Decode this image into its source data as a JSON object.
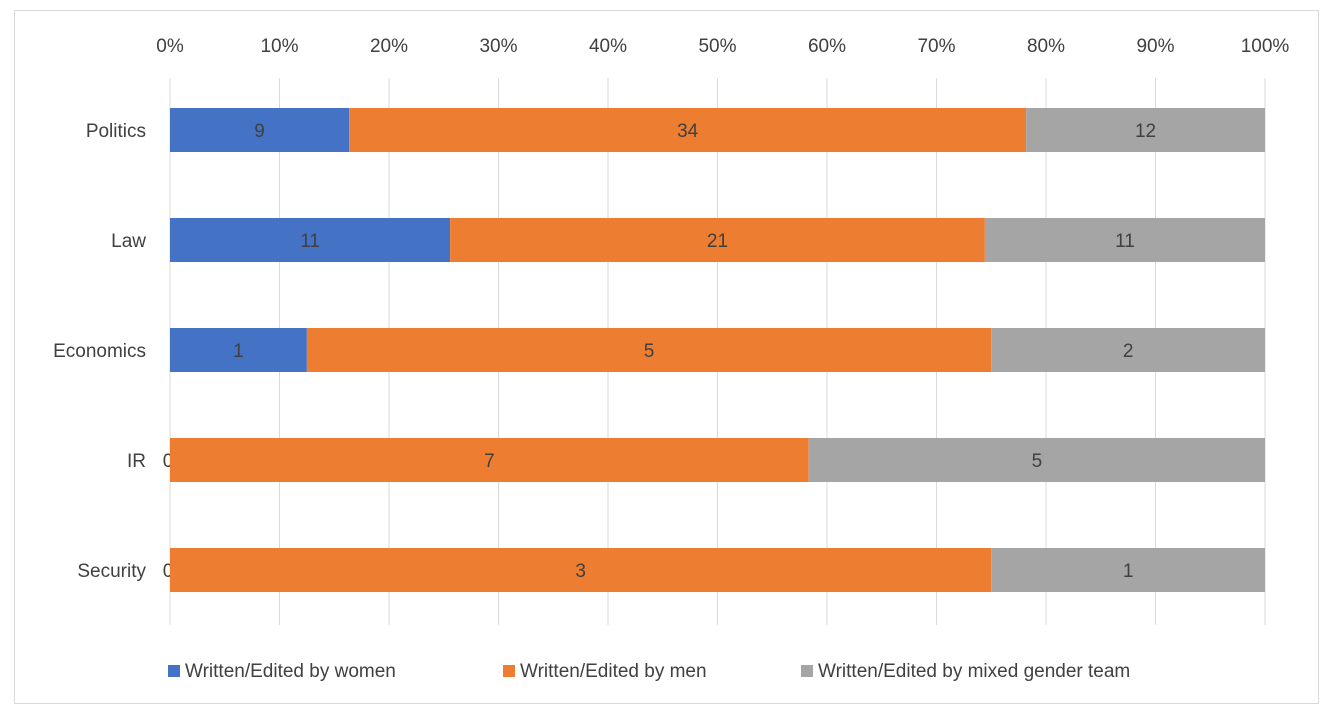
{
  "chart_data": {
    "type": "bar",
    "orientation": "horizontal",
    "stacked": "percent",
    "categories": [
      "Politics",
      "Law",
      "Economics",
      "IR",
      "Security"
    ],
    "series": [
      {
        "name": "Written/Edited by women",
        "values": [
          9,
          11,
          1,
          0,
          0
        ],
        "color": "#4472c4"
      },
      {
        "name": "Written/Edited by men",
        "values": [
          34,
          21,
          5,
          7,
          3
        ],
        "color": "#ed7d31"
      },
      {
        "name": "Written/Edited by mixed gender team",
        "values": [
          12,
          11,
          2,
          5,
          1
        ],
        "color": "#a5a5a5"
      }
    ],
    "x_ticks": [
      "0%",
      "10%",
      "20%",
      "30%",
      "40%",
      "50%",
      "60%",
      "70%",
      "80%",
      "90%",
      "100%"
    ],
    "xlim": [
      0,
      100
    ],
    "x_axis_position": "top",
    "grid": true,
    "legend_position": "bottom"
  }
}
